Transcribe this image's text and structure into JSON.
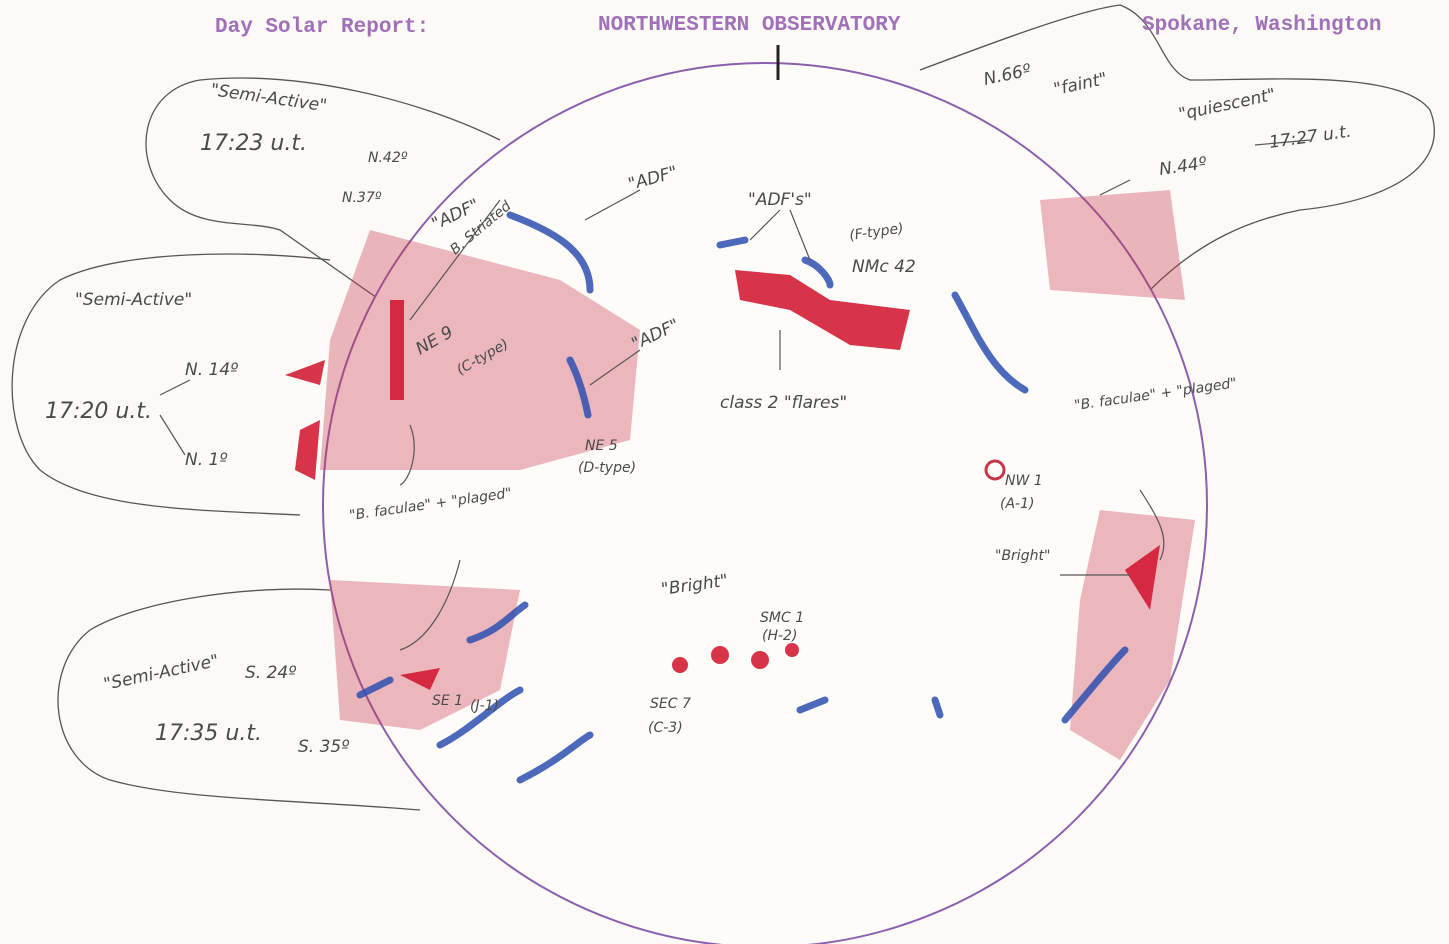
{
  "header": {
    "left": "Day Solar Report:",
    "center": "NORTHWESTERN OBSERVATORY",
    "right": "Spokane, Washington"
  },
  "regions": [
    {
      "activity": "\"Semi-Active\"",
      "time": "17:23 u.t.",
      "lat1": "N.42º",
      "lat2": "N.37º"
    },
    {
      "activity": "\"Semi-Active\"",
      "lat1": "N. 14º",
      "time": "17:20 u.t.",
      "lat2": "N. 1º"
    },
    {
      "activity": "\"Semi-Active\"",
      "lat1": "S. 24º",
      "time": "17:35 u.t.",
      "lat2": "S. 35º"
    },
    {
      "lat1": "N.66º",
      "note": "\"faint\""
    },
    {
      "activity": "\"quiescent\"",
      "lat1": "N.44º",
      "time": "17:27 u.t."
    }
  ],
  "features": {
    "adf1": "\"ADF\"",
    "striated": "B. Striated",
    "adf2": "\"ADF\"",
    "adfs": "\"ADF's\"",
    "ftype": "(F-type)",
    "nmc": "NMc 42",
    "flares": "class 2 \"flares\"",
    "ne9": "NE 9",
    "ctype": "(C-type)",
    "adf3": "\"ADF\"",
    "ne5": "NE 5",
    "dtype": "(D-type)",
    "faculae_left": "\"B. faculae\" + \"plaged\"",
    "faculae_right": "\"B. faculae\" + \"plaged\"",
    "nw1": "NW 1",
    "a1": "(A-1)",
    "bright_right": "\"Bright\"",
    "bright_center": "\"Bright\"",
    "smc1": "SMC 1",
    "h2": "(H-2)",
    "sec7": "SEC 7",
    "c3": "(C-3)",
    "se1": "SE 1",
    "j1": "(J-1)"
  }
}
